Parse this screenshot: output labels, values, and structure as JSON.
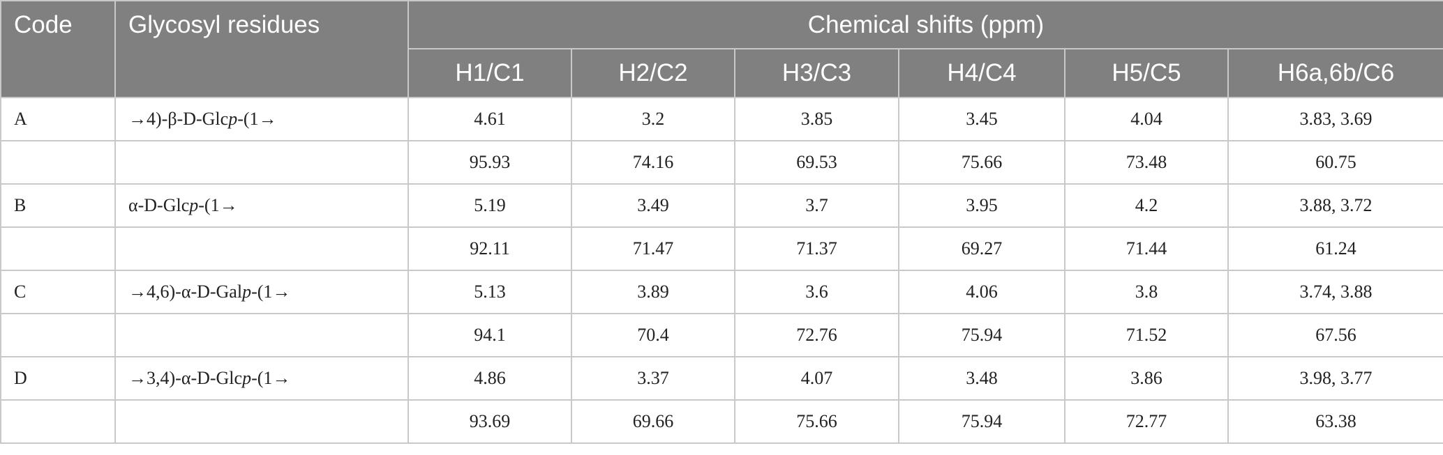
{
  "header": {
    "code": "Code",
    "residues": "Glycosyl residues",
    "group": "Chemical shifts (ppm)",
    "columns": [
      "H1/C1",
      "H2/C2",
      "H3/C3",
      "H4/C4",
      "H5/C5",
      "H6a,6b/C6"
    ]
  },
  "rows": [
    {
      "code": "A",
      "residue": {
        "pre": "→4)-β-D-Glc",
        "ital": "p",
        "post": "-(1→"
      },
      "h": [
        "4.61",
        "3.2",
        "3.85",
        "3.45",
        "4.04",
        "3.83, 3.69"
      ],
      "c": [
        "95.93",
        "74.16",
        "69.53",
        "75.66",
        "73.48",
        "60.75"
      ]
    },
    {
      "code": "B",
      "residue": {
        "pre": "α-D-Glc",
        "ital": "p",
        "post": "-(1→"
      },
      "h": [
        "5.19",
        "3.49",
        "3.7",
        "3.95",
        "4.2",
        "3.88, 3.72"
      ],
      "c": [
        "92.11",
        "71.47",
        "71.37",
        "69.27",
        "71.44",
        "61.24"
      ]
    },
    {
      "code": "C",
      "residue": {
        "pre": "→4,6)-α-D-Gal",
        "ital": "p",
        "post": "-(1→"
      },
      "h": [
        "5.13",
        "3.89",
        "3.6",
        "4.06",
        "3.8",
        "3.74, 3.88"
      ],
      "c": [
        "94.1",
        "70.4",
        "72.76",
        "75.94",
        "71.52",
        "67.56"
      ]
    },
    {
      "code": "D",
      "residue": {
        "pre": "→3,4)-α-D-Glc",
        "ital": "p",
        "post": "-(1→"
      },
      "h": [
        "4.86",
        "3.37",
        "4.07",
        "3.48",
        "3.86",
        "3.98, 3.77"
      ],
      "c": [
        "93.69",
        "69.66",
        "75.66",
        "75.94",
        "72.77",
        "63.38"
      ]
    }
  ]
}
